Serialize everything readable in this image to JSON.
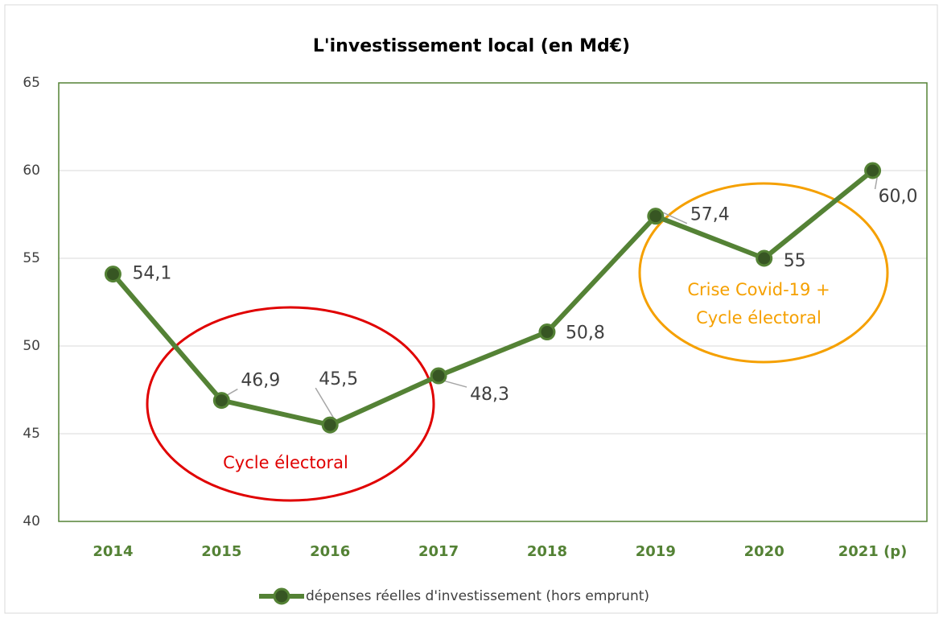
{
  "chart_data": {
    "type": "line",
    "title": "L'investissement local (en Md€)",
    "categories": [
      "2014",
      "2015",
      "2016",
      "2017",
      "2018",
      "2019",
      "2020",
      "2021 (p)"
    ],
    "series": [
      {
        "name": "dépenses réelles d'investissement (hors emprunt)",
        "color": "#548235",
        "values": [
          54.1,
          46.9,
          45.5,
          48.3,
          50.8,
          57.4,
          55,
          60
        ],
        "value_labels": [
          "54,1",
          "46,9",
          "45,5",
          "48,3",
          "50,8",
          "57,4",
          "55",
          "60,0"
        ]
      }
    ],
    "ylim": [
      40,
      65
    ],
    "yticks": [
      40,
      45,
      50,
      55,
      60,
      65
    ],
    "grid": true,
    "legend": "bottom",
    "annotations": [
      "Cycle électoral",
      "Crise Covid-19 +",
      "Cycle électoral"
    ]
  }
}
